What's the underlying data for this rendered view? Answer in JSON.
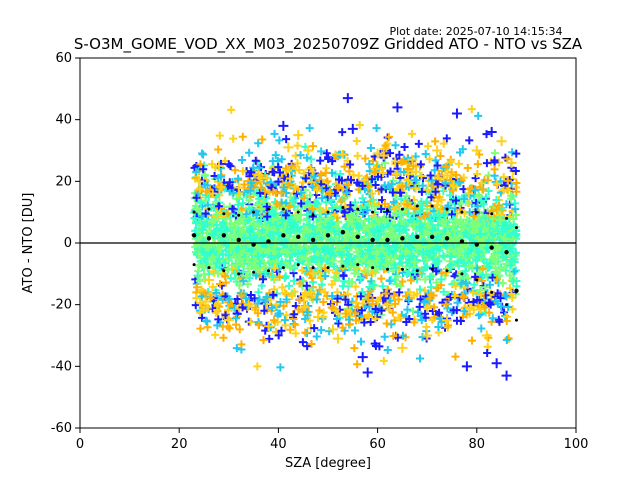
{
  "plot_date": "Plot date: 2025-07-10 14:15:34",
  "chart_data": {
    "type": "scatter",
    "title": "S-O3M_GOME_VOD_XX_M03_20250709Z Gridded ATO - NTO vs SZA",
    "xlabel": "SZA [degree]",
    "ylabel": "ATO - NTO [DU]",
    "xlim": [
      0,
      100
    ],
    "ylim": [
      -60,
      60
    ],
    "x_ticks": [
      0,
      20,
      40,
      60,
      80,
      100
    ],
    "y_ticks": [
      -60,
      -40,
      -20,
      0,
      20,
      40,
      60
    ],
    "grid": false,
    "legend": "none",
    "reference_line": {
      "y": 0,
      "color": "#000000"
    },
    "colors": {
      "blue": "#1a1aff",
      "cyan": "#22c8f0",
      "aqua_green": "#33ffcc",
      "light_green": "#7dff7a",
      "yellow": "#ffd21a",
      "orange": "#ffb000",
      "mean_line": "#000000"
    },
    "scatter_points": [
      {
        "x": 24.0,
        "y": 20.0
      },
      {
        "x": 26.0,
        "y": -12.0
      },
      {
        "x": 28.0,
        "y": 25.0
      },
      {
        "x": 30.0,
        "y": -25.0
      },
      {
        "x": 32.0,
        "y": 18.0
      },
      {
        "x": 34.0,
        "y": -20.0
      },
      {
        "x": 36.0,
        "y": 22.0
      },
      {
        "x": 38.0,
        "y": -27.0
      },
      {
        "x": 41.0,
        "y": 38.0
      },
      {
        "x": 42.0,
        "y": 31.0
      },
      {
        "x": 44.0,
        "y": 35.0
      },
      {
        "x": 46.0,
        "y": 30.0
      },
      {
        "x": 48.0,
        "y": -24.0
      },
      {
        "x": 51.0,
        "y": -28.0
      },
      {
        "x": 52.0,
        "y": -31.0
      },
      {
        "x": 54.0,
        "y": 47.0
      },
      {
        "x": 55.0,
        "y": 37.0
      },
      {
        "x": 57.0,
        "y": -37.0
      },
      {
        "x": 58.0,
        "y": -42.0
      },
      {
        "x": 60.0,
        "y": 29.0
      },
      {
        "x": 62.0,
        "y": -20.0
      },
      {
        "x": 64.0,
        "y": 44.0
      },
      {
        "x": 65.0,
        "y": -34.0
      },
      {
        "x": 67.0,
        "y": 27.0
      },
      {
        "x": 70.0,
        "y": -30.0
      },
      {
        "x": 72.0,
        "y": 30.0
      },
      {
        "x": 74.0,
        "y": -25.0
      },
      {
        "x": 76.0,
        "y": 42.0
      },
      {
        "x": 78.0,
        "y": -40.0
      },
      {
        "x": 80.0,
        "y": 30.0
      },
      {
        "x": 82.0,
        "y": -30.0
      },
      {
        "x": 83.0,
        "y": 36.0
      },
      {
        "x": 84.0,
        "y": -39.0
      },
      {
        "x": 85.0,
        "y": 33.0
      },
      {
        "x": 86.0,
        "y": -43.0
      },
      {
        "x": 87.0,
        "y": 26.0
      }
    ],
    "mean_series": {
      "name": "mean",
      "x": [
        23,
        26,
        29,
        32,
        35,
        38,
        41,
        44,
        47,
        50,
        53,
        56,
        59,
        62,
        65,
        68,
        71,
        74,
        77,
        80,
        83,
        86,
        88
      ],
      "y": [
        2.5,
        1.5,
        2.5,
        1.0,
        -0.5,
        0.5,
        2.5,
        2.0,
        1.0,
        2.5,
        3.5,
        2.0,
        1.0,
        1.0,
        1.5,
        2.0,
        2.0,
        1.5,
        0.5,
        -0.5,
        -1.5,
        -3.0,
        -15.5
      ]
    },
    "upper_std_series": {
      "name": "mean + std",
      "x": [
        23,
        26,
        29,
        32,
        35,
        38,
        41,
        44,
        47,
        50,
        53,
        56,
        59,
        62,
        65,
        68,
        71,
        74,
        77,
        80,
        83,
        86,
        88
      ],
      "y": [
        10.0,
        11.0,
        9.5,
        9.0,
        10.0,
        11.0,
        11.0,
        10.0,
        9.0,
        10.0,
        11.5,
        11.0,
        10.0,
        10.5,
        11.0,
        12.0,
        12.0,
        11.0,
        10.0,
        10.0,
        9.5,
        8.0,
        5.0
      ]
    },
    "lower_std_series": {
      "name": "mean - std",
      "x": [
        23,
        26,
        29,
        32,
        35,
        38,
        41,
        44,
        47,
        50,
        53,
        56,
        59,
        62,
        65,
        68,
        71,
        74,
        77,
        80,
        83,
        86,
        88
      ],
      "y": [
        -7.0,
        -8.0,
        -9.0,
        -10.0,
        -9.5,
        -9.0,
        -8.0,
        -7.0,
        -8.0,
        -8.0,
        -7.5,
        -7.0,
        -8.0,
        -8.5,
        -8.5,
        -9.0,
        -8.5,
        -9.0,
        -10.0,
        -12.0,
        -16.0,
        -20.0,
        -25.0
      ]
    }
  }
}
